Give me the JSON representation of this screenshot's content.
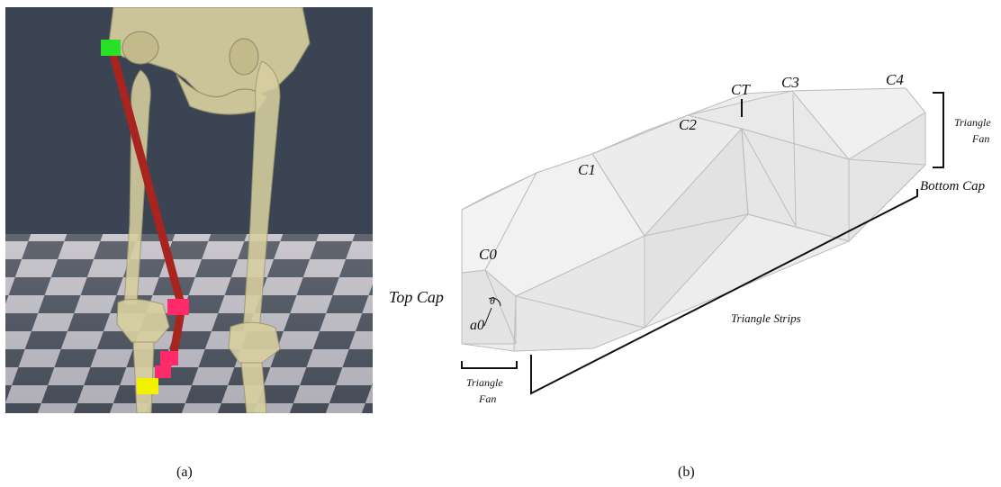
{
  "captions": {
    "a": "(a)",
    "b": "(b)"
  },
  "panel_a": {
    "description_icons": [
      "pelvis-bone",
      "femur-bone",
      "tibia-bone",
      "muscle-line"
    ],
    "colors": {
      "background": "#3a4452",
      "bone": "#d8cfa0",
      "muscle": "#a8241f",
      "origin_marker": "#28e028",
      "via_marker": "#ff2a6a",
      "insertion_marker": "#f2f200"
    }
  },
  "panel_b": {
    "labels": {
      "c0": "C0",
      "c1": "C1",
      "c2": "C2",
      "ct": "CT",
      "c3": "C3",
      "c4": "C4",
      "top_cap": "Top Cap",
      "bottom_cap": "Bottom Cap",
      "triangle_fan_right_1": "Triangle",
      "triangle_fan_right_2": "Fan",
      "triangle_fan_left_1": "Triangle",
      "triangle_fan_left_2": "Fan",
      "triangle_strips": "Triangle Strips",
      "theta": "θ",
      "a0": "a0"
    },
    "colors": {
      "mesh_fill": "#ececec",
      "mesh_stroke": "#bdbdbd",
      "bracket": "#111111"
    }
  }
}
